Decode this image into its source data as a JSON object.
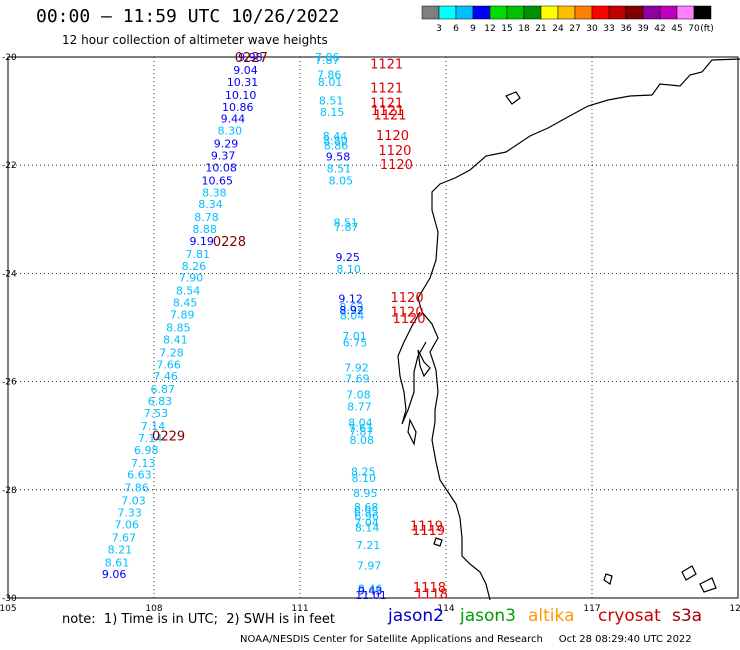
{
  "header": {
    "title": "00:00 – 11:59 UTC 10/26/2022",
    "subtitle": "12 hour collection of altimeter wave heights"
  },
  "colorbar": {
    "colors": [
      "#7f7f7f",
      "#00ffff",
      "#00bfff",
      "#0000ff",
      "#00e000",
      "#00c000",
      "#009000",
      "#ffff00",
      "#ffbf00",
      "#ff8000",
      "#ff0000",
      "#c00000",
      "#800000",
      "#9000a0",
      "#c000c0",
      "#ff80ff",
      "#000000"
    ],
    "labels": [
      "3",
      "6",
      "9",
      "12",
      "15",
      "18",
      "21",
      "24",
      "27",
      "30",
      "33",
      "36",
      "39",
      "42",
      "45",
      "70",
      "(ft)"
    ]
  },
  "footer": {
    "note": "note:  1) Time is in UTC;  2) SWH is in feet",
    "missions": [
      {
        "name": "jason2",
        "color": "#0000c8"
      },
      {
        "name": "jason3",
        "color": "#00a000"
      },
      {
        "name": "altika",
        "color": "#ff9900"
      },
      {
        "name": "cryosat",
        "color": "#d00000"
      },
      {
        "name": "s3a",
        "color": "#a00000"
      }
    ],
    "credit": "NOAA/NESDIS Center for Satellite Applications and Research     Oct 28 08:29:40 UTC 2022"
  },
  "chart_data": {
    "type": "scatter",
    "xlabel": "",
    "ylabel": "",
    "xlim": [
      105,
      120
    ],
    "ylim": [
      -30,
      -20
    ],
    "xticks": [
      105,
      108,
      111,
      114,
      117,
      120
    ],
    "yticks": [
      -20,
      -22,
      -24,
      -26,
      -28,
      -30
    ],
    "xtick_labels": [
      "105",
      "108",
      "111",
      "114",
      "117",
      "120"
    ],
    "ytick_labels": [
      "-20",
      "-22",
      "-24",
      "-26",
      "-28",
      "-30"
    ],
    "grid": true,
    "series": [
      {
        "name": "track 0227-0229",
        "points": [
          {
            "lon": 109.98,
            "lat": -20.0,
            "v": "9.98",
            "c": "#0000ff"
          },
          {
            "lon": 109.88,
            "lat": -20.24,
            "v": "9.04",
            "c": "#0000ff"
          },
          {
            "lon": 109.82,
            "lat": -20.46,
            "v": "10.31",
            "c": "#0000ff"
          },
          {
            "lon": 109.78,
            "lat": -20.7,
            "v": "10.10",
            "c": "#0000ff"
          },
          {
            "lon": 109.72,
            "lat": -20.92,
            "v": "10.86",
            "c": "#0000ff"
          },
          {
            "lon": 109.62,
            "lat": -21.14,
            "v": "9.44",
            "c": "#0000ff"
          },
          {
            "lon": 109.56,
            "lat": -21.36,
            "v": "8.30",
            "c": "#00bfff"
          },
          {
            "lon": 109.48,
            "lat": -21.6,
            "v": "9.29",
            "c": "#0000ff"
          },
          {
            "lon": 109.42,
            "lat": -21.82,
            "v": "9.37",
            "c": "#0000ff"
          },
          {
            "lon": 109.38,
            "lat": -22.04,
            "v": "10.08",
            "c": "#0000ff"
          },
          {
            "lon": 109.3,
            "lat": -22.28,
            "v": "10.65",
            "c": "#0000ff"
          },
          {
            "lon": 109.24,
            "lat": -22.5,
            "v": "8.38",
            "c": "#00bfff"
          },
          {
            "lon": 109.16,
            "lat": -22.72,
            "v": "8.34",
            "c": "#00bfff"
          },
          {
            "lon": 109.08,
            "lat": -22.96,
            "v": "8.78",
            "c": "#00bfff"
          },
          {
            "lon": 109.04,
            "lat": -23.18,
            "v": "8.88",
            "c": "#00bfff"
          },
          {
            "lon": 108.98,
            "lat": -23.4,
            "v": "9.19",
            "c": "#0000ff"
          },
          {
            "lon": 108.9,
            "lat": -23.64,
            "v": "7.81",
            "c": "#00bfff"
          },
          {
            "lon": 108.82,
            "lat": -23.86,
            "v": "8.26",
            "c": "#00bfff"
          },
          {
            "lon": 108.76,
            "lat": -24.08,
            "v": "7.90",
            "c": "#00bfff"
          },
          {
            "lon": 108.7,
            "lat": -24.32,
            "v": "8.54",
            "c": "#00bfff"
          },
          {
            "lon": 108.64,
            "lat": -24.54,
            "v": "8.45",
            "c": "#00bfff"
          },
          {
            "lon": 108.58,
            "lat": -24.76,
            "v": "7.89",
            "c": "#00bfff"
          },
          {
            "lon": 108.5,
            "lat": -25.0,
            "v": "8.85",
            "c": "#00bfff"
          },
          {
            "lon": 108.44,
            "lat": -25.22,
            "v": "8.41",
            "c": "#00bfff"
          },
          {
            "lon": 108.36,
            "lat": -25.46,
            "v": "7.28",
            "c": "#00bfff"
          },
          {
            "lon": 108.3,
            "lat": -25.68,
            "v": "7.66",
            "c": "#00bfff"
          },
          {
            "lon": 108.24,
            "lat": -25.9,
            "v": "7.46",
            "c": "#00bfff"
          },
          {
            "lon": 108.18,
            "lat": -26.14,
            "v": "6.87",
            "c": "#00bfff"
          },
          {
            "lon": 108.12,
            "lat": -26.36,
            "v": "6.83",
            "c": "#00bfff"
          },
          {
            "lon": 108.04,
            "lat": -26.58,
            "v": "7.53",
            "c": "#00bfff"
          },
          {
            "lon": 107.98,
            "lat": -26.82,
            "v": "7.14",
            "c": "#00bfff"
          },
          {
            "lon": 107.92,
            "lat": -27.04,
            "v": "7.14",
            "c": "#00bfff"
          },
          {
            "lon": 107.84,
            "lat": -27.26,
            "v": "6.98",
            "c": "#00bfff"
          },
          {
            "lon": 107.78,
            "lat": -27.5,
            "v": "7.13",
            "c": "#00bfff"
          },
          {
            "lon": 107.7,
            "lat": -27.72,
            "v": "6.63",
            "c": "#00bfff"
          },
          {
            "lon": 107.64,
            "lat": -27.96,
            "v": "7.86",
            "c": "#00bfff"
          },
          {
            "lon": 107.58,
            "lat": -28.2,
            "v": "7.03",
            "c": "#00bfff"
          },
          {
            "lon": 107.5,
            "lat": -28.42,
            "v": "7.33",
            "c": "#00bfff"
          },
          {
            "lon": 107.44,
            "lat": -28.64,
            "v": "7.06",
            "c": "#00bfff"
          },
          {
            "lon": 107.38,
            "lat": -28.88,
            "v": "7.67",
            "c": "#00bfff"
          },
          {
            "lon": 107.3,
            "lat": -29.1,
            "v": "8.21",
            "c": "#00bfff"
          },
          {
            "lon": 107.24,
            "lat": -29.34,
            "v": "8.61",
            "c": "#00bfff"
          },
          {
            "lon": 107.18,
            "lat": -29.56,
            "v": "9.06",
            "c": "#0000ff"
          }
        ]
      },
      {
        "name": "track 1118-1121",
        "points": [
          {
            "lon": 111.56,
            "lat": -20.0,
            "v": "7.86",
            "c": "#00bfff"
          },
          {
            "lon": 111.56,
            "lat": -20.06,
            "v": "7.87",
            "c": "#00bfff"
          },
          {
            "lon": 111.6,
            "lat": -20.32,
            "v": "7.86",
            "c": "#00bfff"
          },
          {
            "lon": 111.62,
            "lat": -20.46,
            "v": "8.01",
            "c": "#00bfff"
          },
          {
            "lon": 111.64,
            "lat": -20.8,
            "v": "8.51",
            "c": "#00bfff"
          },
          {
            "lon": 111.66,
            "lat": -21.02,
            "v": "8.15",
            "c": "#00bfff"
          },
          {
            "lon": 111.72,
            "lat": -21.46,
            "v": "8.44",
            "c": "#00bfff"
          },
          {
            "lon": 111.73,
            "lat": -21.54,
            "v": "8.80",
            "c": "#00bfff"
          },
          {
            "lon": 111.74,
            "lat": -21.64,
            "v": "8.86",
            "c": "#00bfff"
          },
          {
            "lon": 111.78,
            "lat": -21.84,
            "v": "9.58",
            "c": "#0000ff"
          },
          {
            "lon": 111.8,
            "lat": -22.06,
            "v": "8.51",
            "c": "#00bfff"
          },
          {
            "lon": 111.84,
            "lat": -22.28,
            "v": "8.05",
            "c": "#00bfff"
          },
          {
            "lon": 111.94,
            "lat": -23.06,
            "v": "8.51",
            "c": "#00bfff"
          },
          {
            "lon": 111.95,
            "lat": -23.14,
            "v": "7.87",
            "c": "#00bfff"
          },
          {
            "lon": 111.98,
            "lat": -23.7,
            "v": "9.25",
            "c": "#0000ff"
          },
          {
            "lon": 112.0,
            "lat": -23.92,
            "v": "8.10",
            "c": "#00bfff"
          },
          {
            "lon": 112.04,
            "lat": -24.46,
            "v": "9.12",
            "c": "#0000ff"
          },
          {
            "lon": 112.06,
            "lat": -24.62,
            "v": "8.62",
            "c": "#00bfff"
          },
          {
            "lon": 112.06,
            "lat": -24.68,
            "v": "8.92",
            "c": "#0000ff"
          },
          {
            "lon": 112.07,
            "lat": -24.78,
            "v": "8.04",
            "c": "#00bfff"
          },
          {
            "lon": 112.12,
            "lat": -25.16,
            "v": "7.01",
            "c": "#00bfff"
          },
          {
            "lon": 112.13,
            "lat": -25.28,
            "v": "6.75",
            "c": "#00bfff"
          },
          {
            "lon": 112.16,
            "lat": -25.74,
            "v": "7.92",
            "c": "#00bfff"
          },
          {
            "lon": 112.18,
            "lat": -25.94,
            "v": "7.69",
            "c": "#00bfff"
          },
          {
            "lon": 112.2,
            "lat": -26.24,
            "v": "7.08",
            "c": "#00bfff"
          },
          {
            "lon": 112.22,
            "lat": -26.46,
            "v": "8.77",
            "c": "#00bfff"
          },
          {
            "lon": 112.24,
            "lat": -26.76,
            "v": "8.04",
            "c": "#00bfff"
          },
          {
            "lon": 112.25,
            "lat": -26.86,
            "v": "7.61",
            "c": "#00bfff"
          },
          {
            "lon": 112.26,
            "lat": -26.92,
            "v": "7.87",
            "c": "#00bfff"
          },
          {
            "lon": 112.27,
            "lat": -27.08,
            "v": "8.08",
            "c": "#00bfff"
          },
          {
            "lon": 112.3,
            "lat": -27.66,
            "v": "8.25",
            "c": "#00bfff"
          },
          {
            "lon": 112.31,
            "lat": -27.78,
            "v": "8.10",
            "c": "#00bfff"
          },
          {
            "lon": 112.34,
            "lat": -28.06,
            "v": "8.95",
            "c": "#00bfff"
          },
          {
            "lon": 112.36,
            "lat": -28.32,
            "v": "8.68",
            "c": "#00bfff"
          },
          {
            "lon": 112.36,
            "lat": -28.4,
            "v": "6.95",
            "c": "#00bfff"
          },
          {
            "lon": 112.37,
            "lat": -28.48,
            "v": "6.96",
            "c": "#00bfff"
          },
          {
            "lon": 112.37,
            "lat": -28.6,
            "v": "7.04",
            "c": "#00bfff"
          },
          {
            "lon": 112.38,
            "lat": -28.7,
            "v": "8.14",
            "c": "#00bfff"
          },
          {
            "lon": 112.4,
            "lat": -29.02,
            "v": "7.21",
            "c": "#00bfff"
          },
          {
            "lon": 112.42,
            "lat": -29.4,
            "v": "7.97",
            "c": "#00bfff"
          },
          {
            "lon": 112.44,
            "lat": -29.82,
            "v": "8.46",
            "c": "#00bfff"
          },
          {
            "lon": 112.44,
            "lat": -29.86,
            "v": "9.43",
            "c": "#0000ff"
          },
          {
            "lon": 112.46,
            "lat": -29.94,
            "v": "11.01",
            "c": "#0000ff"
          }
        ]
      }
    ],
    "annotations": [
      {
        "lon": 110.0,
        "lat": -20.0,
        "text": "0227",
        "c": "#800000"
      },
      {
        "lon": 109.55,
        "lat": -23.4,
        "text": "0228",
        "c": "#800000"
      },
      {
        "lon": 108.3,
        "lat": -27.0,
        "text": "0229",
        "c": "#800000"
      },
      {
        "lon": 112.78,
        "lat": -20.12,
        "text": "1121",
        "c": "#e00000"
      },
      {
        "lon": 112.78,
        "lat": -20.56,
        "text": "1121",
        "c": "#e00000"
      },
      {
        "lon": 112.78,
        "lat": -20.84,
        "text": "1121",
        "c": "#e00000"
      },
      {
        "lon": 112.8,
        "lat": -20.98,
        "text": "1121",
        "c": "#e00000"
      },
      {
        "lon": 112.85,
        "lat": -21.06,
        "text": "1121",
        "c": "#e00000"
      },
      {
        "lon": 112.9,
        "lat": -21.44,
        "text": "1120",
        "c": "#e00000"
      },
      {
        "lon": 112.95,
        "lat": -21.72,
        "text": "1120",
        "c": "#e00000"
      },
      {
        "lon": 112.98,
        "lat": -21.98,
        "text": "1120",
        "c": "#e00000"
      },
      {
        "lon": 113.2,
        "lat": -24.44,
        "text": "1120",
        "c": "#e00000"
      },
      {
        "lon": 113.2,
        "lat": -24.7,
        "text": "1120",
        "c": "#e00000"
      },
      {
        "lon": 113.24,
        "lat": -24.82,
        "text": "1120",
        "c": "#e00000"
      },
      {
        "lon": 113.6,
        "lat": -28.66,
        "text": "1119",
        "c": "#e00000"
      },
      {
        "lon": 113.64,
        "lat": -28.74,
        "text": "1119",
        "c": "#e00000"
      },
      {
        "lon": 113.66,
        "lat": -29.8,
        "text": "1118",
        "c": "#e00000"
      },
      {
        "lon": 113.7,
        "lat": -29.92,
        "text": "1118",
        "c": "#e00000"
      }
    ]
  }
}
